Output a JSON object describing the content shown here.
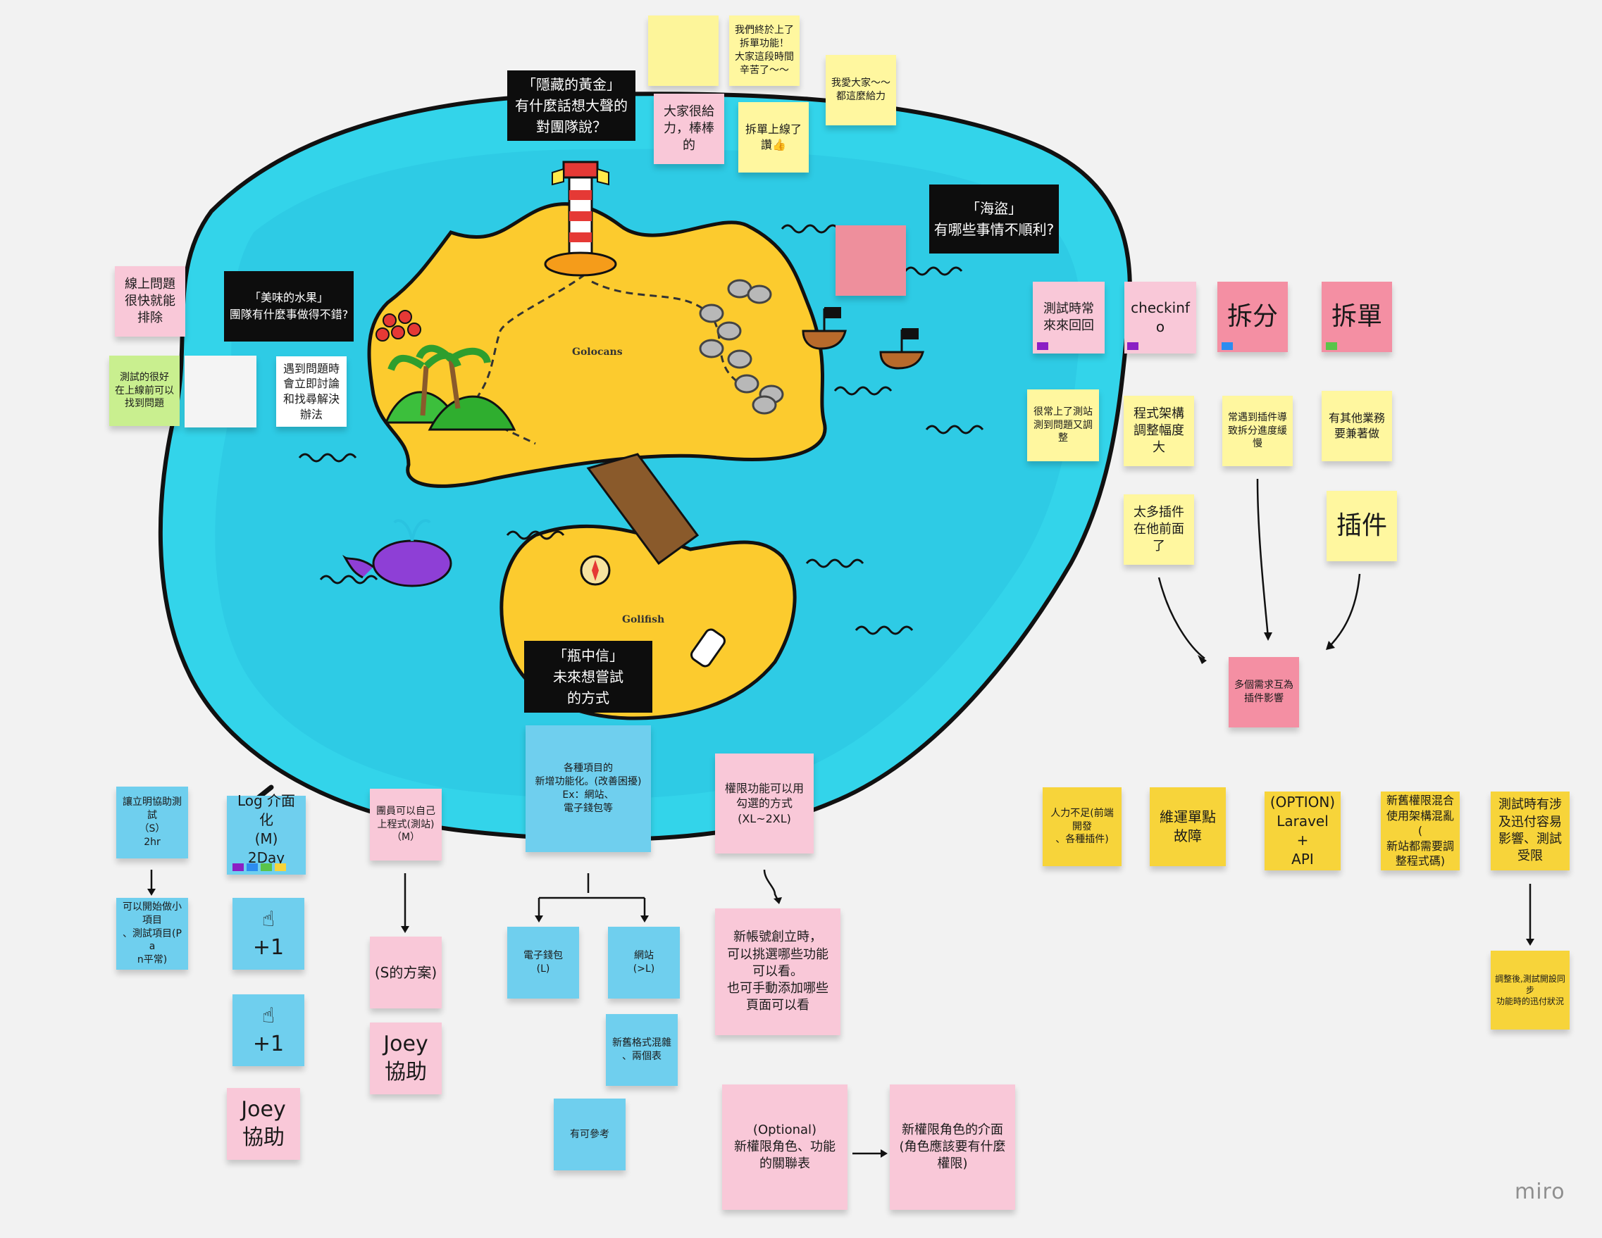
{
  "app": {
    "logo": "miro"
  },
  "map": {
    "island_top_label": "Golocans",
    "island_bottom_label": "Golifish",
    "colors": {
      "sea": "#33d4ea",
      "sea_inner": "#2ac3e0",
      "sand": "#fccb2e",
      "outline": "#111111"
    }
  },
  "headers": {
    "gold": "「隱藏的黃金」\n有什麼話想大聲的\n對團隊說？",
    "fruit": "「美味的水果」\n團隊有什麼事做得不錯?",
    "pirates": "「海盜」\n有哪些事情不順利?",
    "bottle": "「瓶中信」\n未來想嘗試\n的方式"
  },
  "gold_notes": {
    "empty": "",
    "n1": "我們終於上了\n拆單功能！\n大家這段時間\n辛苦了～～",
    "n2": "我愛大家～～\n都這麼給力",
    "n3": "大家很給\n力，棒棒\n的",
    "n4": "拆單上線了\n讚👍"
  },
  "fruit_notes": {
    "n1": "線上問題\n很快就能\n排除",
    "n2": "測試的很好\n在上線前可以\n找到問題",
    "blank": "",
    "n3": "遇到問題時\n會立即討論\n和找尋解決\n辦法"
  },
  "pirate_notes": {
    "blank_red": "",
    "test": "測試時常\n來來回回",
    "checkinfo": "checkinfo",
    "split": "拆分",
    "split_order": "拆單",
    "often": "很常上了測站\n測到問題又調\n整",
    "arch": "程式架構\n調整幅度\n大",
    "plugin_delay": "常遇到插件導\n致拆分進度緩\n慢",
    "other": "有其他業務\n要兼著做",
    "many_plugins": "太多插件\n在他前面\n了",
    "plugin": "插件",
    "combined": "多個需求互為\n插件影響"
  },
  "yellow_row": {
    "n1": "人力不足(前端開發\n、各種插件)",
    "n2": "維運單點\n故障",
    "n3": "(OPTION)\nLaravel +\nAPI",
    "n4": "新舊權限混合\n使用架構混亂(\n新站都需要調\n整程式碼)",
    "n5": "測試時有涉\n及迅付容易\n影響、測試\n受限",
    "n6": "調整後,測試開設同步\n功能時的迅付狀況"
  },
  "future": {
    "teach": "讓立明協助測試\n（S）\n2hr",
    "small": "可以開始做小\n項目\n、測試項目(Pa\nn平常)",
    "log": "Log 介面化\n(M)\n2Day",
    "plus1": "☝\n+1",
    "plus2": "☝\n+1",
    "joey1": "Joey\n協助",
    "member": "團員可以自己\n上程式(測站)\n（M）",
    "s_plan": "(S的方案)",
    "joey2": "Joey\n協助",
    "features": "各種項目的\n新增功能化。(改善困擾)\nEx：網站、\n電子錢包等",
    "wallet": "電子錢包\n(L)",
    "site": "網站\n(>L)",
    "mixed": "新舊格式混雜\n、兩個表",
    "ref": "有可參考",
    "perm": "權限功能可以用\n勾選的方式\n(XL~2XL)",
    "new_account": "新帳號創立時，\n可以挑選哪些功能\n可以看。\n也可手動添加哪些\n頁面可以看",
    "optional": "(Optional)\n新權限角色、功能\n的關聯表",
    "role_ui": "新權限角色的介面\n(角色應該要有什麼\n權限)"
  }
}
